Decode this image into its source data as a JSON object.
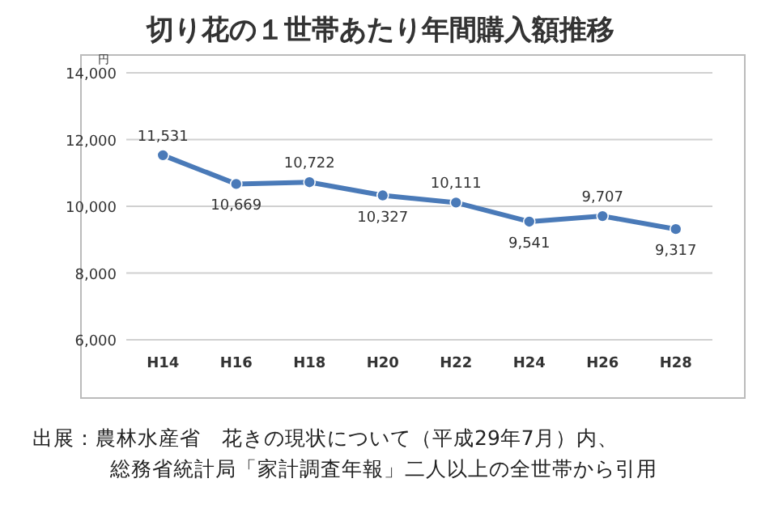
{
  "chart_data": {
    "type": "line",
    "title": "切り花の１世帯あたり年間購入額推移",
    "ylabel": "円",
    "categories": [
      "H14",
      "H16",
      "H18",
      "H20",
      "H22",
      "H24",
      "H26",
      "H28"
    ],
    "values": [
      11531,
      10669,
      10722,
      10327,
      10111,
      9541,
      9707,
      9317
    ],
    "value_labels": [
      "11,531",
      "10,669",
      "10,722",
      "10,327",
      "10,111",
      "9,541",
      "9,707",
      "9,317"
    ],
    "color": "#4a7ab8",
    "marker": "circle",
    "line_style": "solid",
    "grid": "y",
    "ylim": [
      6000,
      14000
    ],
    "yticks": [
      {
        "value": 6000,
        "label": "6,000"
      },
      {
        "value": 8000,
        "label": "8,000"
      },
      {
        "value": 10000,
        "label": "10,000"
      },
      {
        "value": 12000,
        "label": "12,000"
      },
      {
        "value": 14000,
        "label": "14,000"
      }
    ],
    "annotations": [
      "出展：農林水産省　花きの現状について（平成29年7月）内、",
      "総務省統計局「家計調査年報」二人以上の全世帯から引用"
    ]
  }
}
